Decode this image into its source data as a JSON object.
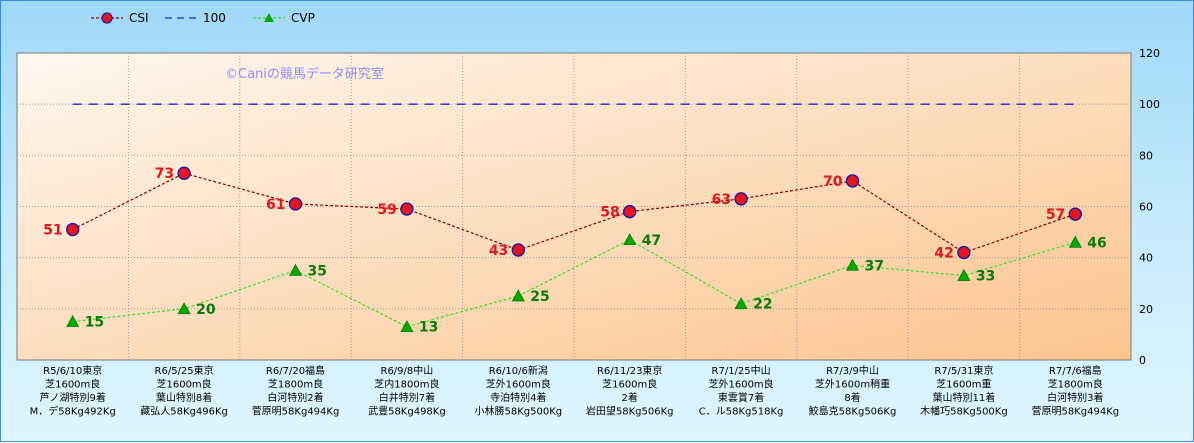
{
  "chart_data": {
    "type": "line",
    "watermark": "©Caniの競馬データ研究室",
    "categories": [
      [
        "R5/6/10東京",
        "芝1600m良",
        "芦ノ湖特別9着",
        "M．デ58Kg492Kg"
      ],
      [
        "R6/5/25東京",
        "芝1600m良",
        "葉山特別8着",
        "藏弘人58Kg496Kg"
      ],
      [
        "R6/7/20福島",
        "芝1800m良",
        "白河特別2着",
        "菅原明58Kg494Kg"
      ],
      [
        "R6/9/8中山",
        "芝内1800m良",
        "白井特別7着",
        "武豊58Kg498Kg"
      ],
      [
        "R6/10/6新潟",
        "芝外1600m良",
        "寺泊特別4着",
        "小林勝58Kg500Kg"
      ],
      [
        "R6/11/23東京",
        "芝1600m良",
        "2着",
        "岩田望58Kg506Kg"
      ],
      [
        "R7/1/25中山",
        "芝外1600m良",
        "東雲賞7着",
        "C．ル58Kg518Kg"
      ],
      [
        "R7/3/9中山",
        "芝外1600m稍重",
        "8着",
        "鮫島克58Kg506Kg"
      ],
      [
        "R7/5/31東京",
        "芝1600m重",
        "葉山特別11着",
        "木幡巧58Kg500Kg"
      ],
      [
        "R7/7/6福島",
        "芝1800m良",
        "白河特別3着",
        "菅原明58Kg494Kg"
      ]
    ],
    "series": [
      {
        "name": "CSI",
        "values": [
          51,
          73,
          61,
          59,
          43,
          58,
          63,
          70,
          42,
          57
        ],
        "color": "#8b0000",
        "marker_color": "#e8141e"
      },
      {
        "name": "100",
        "values": [
          100,
          100,
          100,
          100,
          100,
          100,
          100,
          100,
          100,
          100
        ],
        "color": "#2222dd"
      },
      {
        "name": "CVP",
        "values": [
          15,
          20,
          35,
          13,
          25,
          47,
          22,
          37,
          33,
          46
        ],
        "color": "#33dd33",
        "marker_color": "#00aa00"
      }
    ],
    "ylim": [
      0,
      120
    ],
    "yticks": [
      0,
      20,
      40,
      60,
      80,
      100,
      120
    ],
    "legend": "top-left",
    "grid": true
  }
}
